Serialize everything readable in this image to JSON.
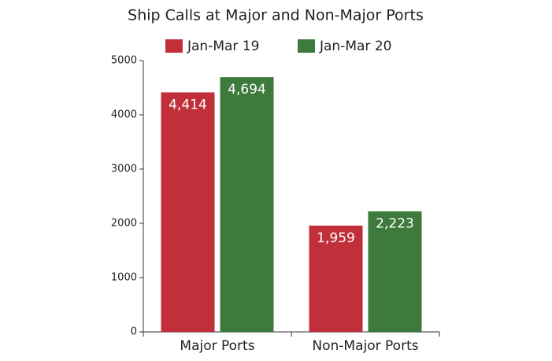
{
  "chart_data": {
    "type": "bar",
    "title": "Ship Calls at Major and Non-Major Ports",
    "categories": [
      "Major Ports",
      "Non-Major Ports"
    ],
    "series": [
      {
        "name": "Jan-Mar 19",
        "color": "#c1303a",
        "values": [
          4414,
          1959
        ],
        "value_labels": [
          "4,414",
          "1,959"
        ]
      },
      {
        "name": "Jan-Mar 20",
        "color": "#3e7a3b",
        "values": [
          4694,
          2223
        ],
        "value_labels": [
          "4,694",
          "2,223"
        ]
      }
    ],
    "ylim": [
      0,
      5000
    ],
    "yticks": [
      0,
      1000,
      2000,
      3000,
      4000,
      5000
    ],
    "legend": "top"
  }
}
